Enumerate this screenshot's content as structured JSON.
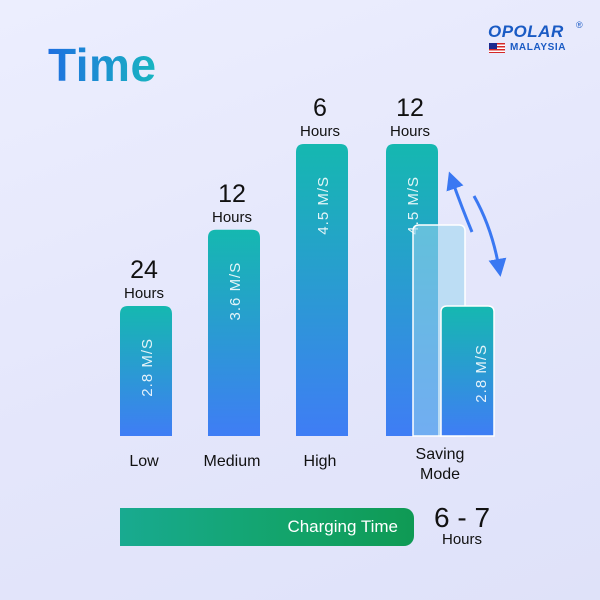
{
  "title": "Time",
  "logo": {
    "brand": "OPOLAR",
    "registered": "®",
    "country": "MALAYSIA"
  },
  "colors": {
    "bar_top": "#15b8b0",
    "bar_bottom": "#3f7df5",
    "charge_start": "#18aa90",
    "charge_end": "#0f9a54",
    "arrow": "#3a78f2"
  },
  "chart_data": {
    "type": "bar",
    "title": "Time",
    "categories": [
      "Low",
      "Medium",
      "High",
      "Saving Mode"
    ],
    "values": [
      24,
      12,
      6,
      12
    ],
    "unit": "Hours",
    "bar_labels": [
      "2.8 M/S",
      "3.6 M/S",
      "4.5 M/S",
      "4.5 M/S"
    ],
    "wind_speeds": [
      2.8,
      3.6,
      4.5,
      4.5
    ],
    "saving_mode_low_speed": 2.8,
    "saving_mode_low_label": "2.8 M/S",
    "saving_mode_alternates": true
  },
  "charging": {
    "label": "Charging Time",
    "value": "6 - 7",
    "unit": "Hours"
  }
}
